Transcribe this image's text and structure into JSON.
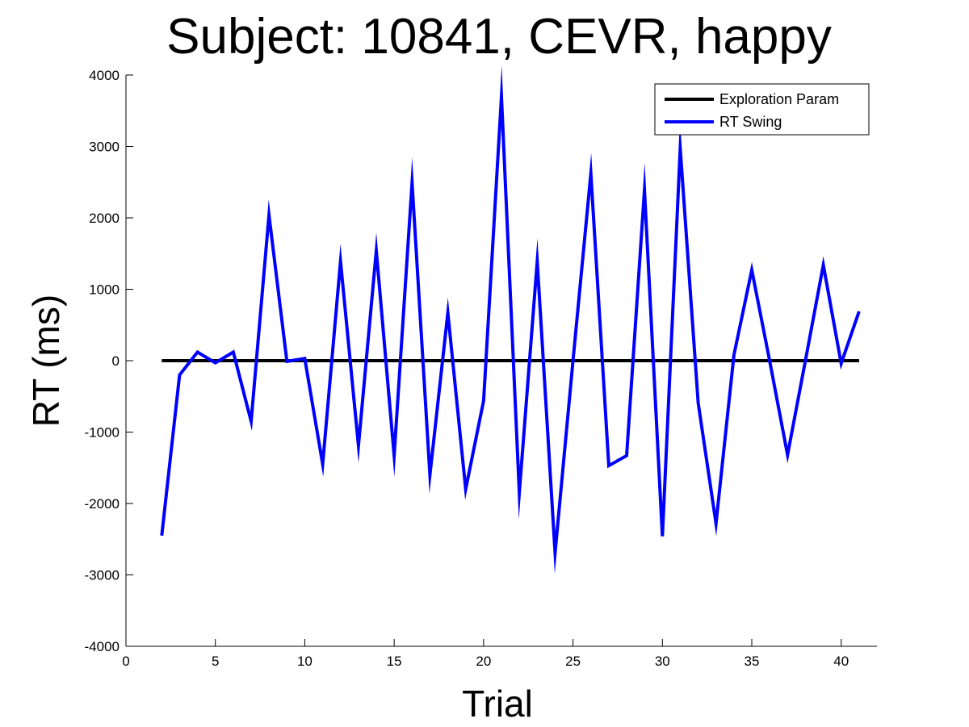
{
  "chart_data": {
    "type": "line",
    "title": "Subject: 10841, CEVR, happy",
    "xlabel": "Trial",
    "ylabel": "RT (ms)",
    "xlim": [
      0,
      42
    ],
    "ylim": [
      -4000,
      4000
    ],
    "xticks": [
      0,
      5,
      10,
      15,
      20,
      25,
      30,
      35,
      40
    ],
    "yticks": [
      -4000,
      -3000,
      -2000,
      -1000,
      0,
      1000,
      2000,
      3000,
      4000
    ],
    "grid": false,
    "legend_position": "top-right",
    "series": [
      {
        "name": "Exploration Param",
        "color": "#000000",
        "x": [
          2,
          41
        ],
        "y": [
          0,
          0
        ]
      },
      {
        "name": "RT Swing",
        "color": "#0000ff",
        "x": [
          2,
          3,
          4,
          5,
          6,
          7,
          8,
          9,
          10,
          11,
          12,
          13,
          14,
          15,
          16,
          17,
          18,
          19,
          20,
          21,
          22,
          23,
          24,
          25,
          26,
          27,
          28,
          29,
          30,
          31,
          32,
          33,
          34,
          35,
          36,
          37,
          38,
          39,
          40,
          41
        ],
        "y": [
          -2450,
          -200,
          120,
          -30,
          120,
          -850,
          2040,
          -10,
          30,
          -1450,
          1390,
          -1190,
          1540,
          -1330,
          2490,
          -1600,
          670,
          -1800,
          -560,
          3700,
          -1850,
          1390,
          -2690,
          0,
          2620,
          -1470,
          -1330,
          2390,
          -2460,
          2970,
          -590,
          -2280,
          80,
          1270,
          0,
          -1320,
          0,
          1340,
          -40,
          690
        ]
      }
    ]
  }
}
